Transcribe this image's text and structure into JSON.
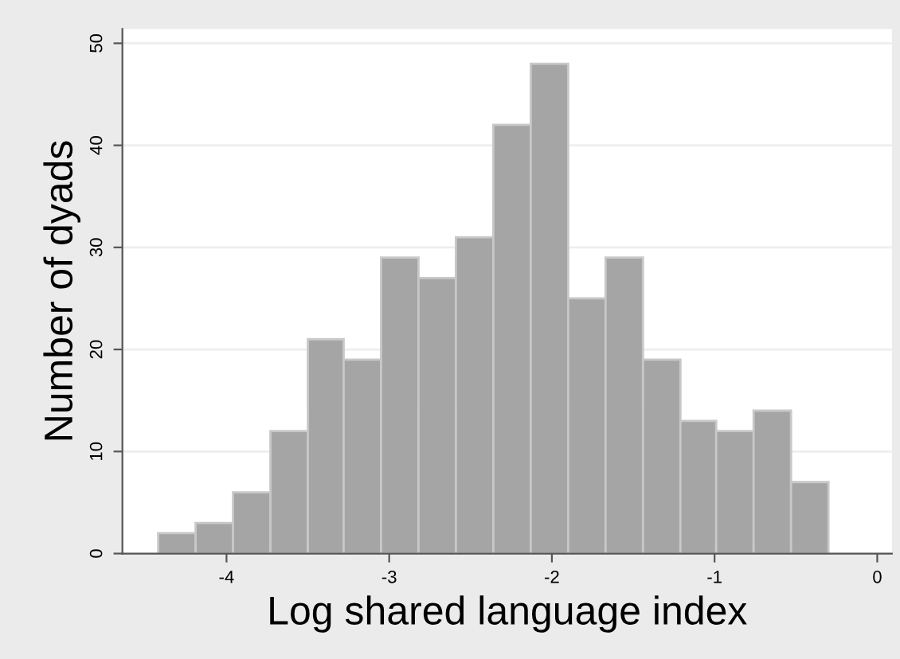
{
  "chart_data": {
    "type": "histogram",
    "xlabel": "Log shared language index",
    "ylabel": "Number of dyads",
    "bins": [
      -4.42,
      -4.19,
      -3.96,
      -3.73,
      -3.5,
      -3.28,
      -3.05,
      -2.82,
      -2.59,
      -2.36,
      -2.13,
      -1.9,
      -1.67,
      -1.44,
      -1.21,
      -0.99,
      -0.76,
      -0.53,
      -0.3
    ],
    "values": [
      2,
      3,
      6,
      12,
      21,
      19,
      29,
      27,
      31,
      42,
      48,
      25,
      29,
      19,
      13,
      12,
      14,
      7
    ],
    "color": "#a5a5a5",
    "xlim": [
      -4.64,
      0.09
    ],
    "xticks": [
      -4,
      -3,
      -2,
      -1,
      0
    ],
    "ylim": [
      0,
      51.4
    ],
    "yticks": [
      0,
      10,
      20,
      30,
      40,
      50
    ],
    "grid": "y"
  }
}
